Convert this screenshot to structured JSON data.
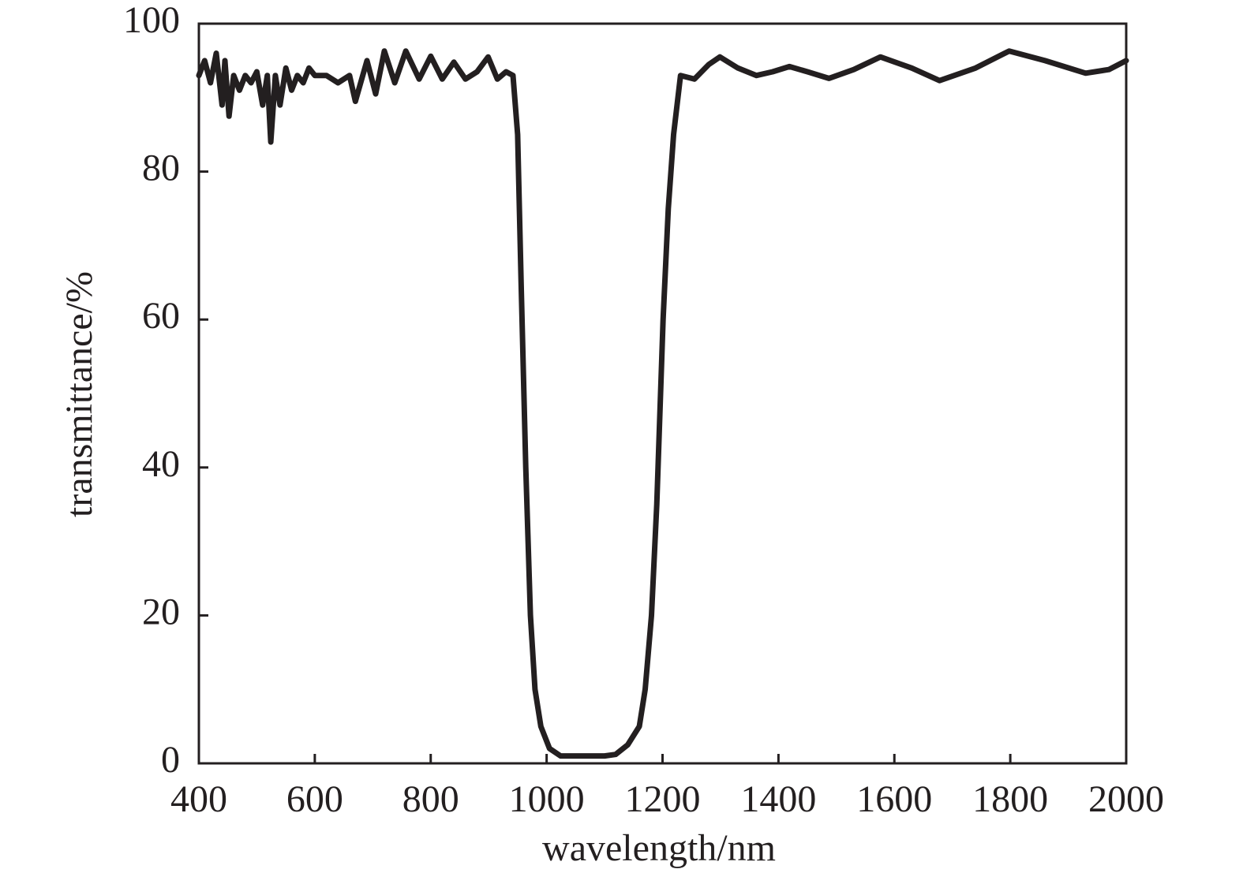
{
  "chart_data": {
    "type": "line",
    "xlabel": "wavelength/nm",
    "ylabel": "transmittance/%",
    "x": [
      400,
      410,
      420,
      430,
      440,
      445,
      452,
      460,
      470,
      480,
      490,
      500,
      510,
      518,
      524,
      532,
      540,
      550,
      560,
      570,
      580,
      590,
      600,
      620,
      640,
      660,
      670,
      690,
      705,
      720,
      738,
      757,
      780,
      800,
      820,
      840,
      860,
      880,
      899,
      915,
      930,
      942,
      950,
      956,
      964,
      972,
      980,
      990,
      1005,
      1024,
      1060,
      1100,
      1119,
      1140,
      1160,
      1170,
      1181,
      1190,
      1201,
      1210,
      1219,
      1231,
      1255,
      1280,
      1299,
      1330,
      1362,
      1390,
      1419,
      1450,
      1487,
      1530,
      1576,
      1630,
      1678,
      1740,
      1798,
      1860,
      1930,
      1970,
      2000
    ],
    "values": [
      93,
      95,
      92,
      96,
      89,
      95,
      87.5,
      93,
      91,
      93,
      92,
      93.5,
      89,
      93,
      84,
      93,
      89,
      94,
      91,
      93,
      92,
      94,
      93,
      93,
      92,
      93,
      89.5,
      95,
      90.5,
      96.3,
      92,
      96.3,
      92.5,
      95.6,
      92.5,
      94.8,
      92.5,
      93.5,
      95.5,
      92.5,
      93.5,
      93,
      85,
      65,
      40,
      20,
      10,
      5,
      2,
      1,
      1,
      1,
      1.2,
      2.5,
      5,
      10,
      20,
      35,
      60,
      75,
      85,
      93,
      92.5,
      94.5,
      95.5,
      94,
      93,
      93.5,
      94.2,
      93.5,
      92.6,
      93.8,
      95.5,
      94,
      92.3,
      94,
      96.3,
      95,
      93.3,
      93.8,
      95
    ],
    "color": "#231f20",
    "xlim": [
      400,
      2000
    ],
    "xticks": [
      400,
      600,
      800,
      1000,
      1200,
      1400,
      1600,
      1800,
      2000
    ],
    "ylim": [
      0,
      100
    ],
    "yticks": [
      0,
      20,
      40,
      60,
      80,
      100
    ]
  }
}
